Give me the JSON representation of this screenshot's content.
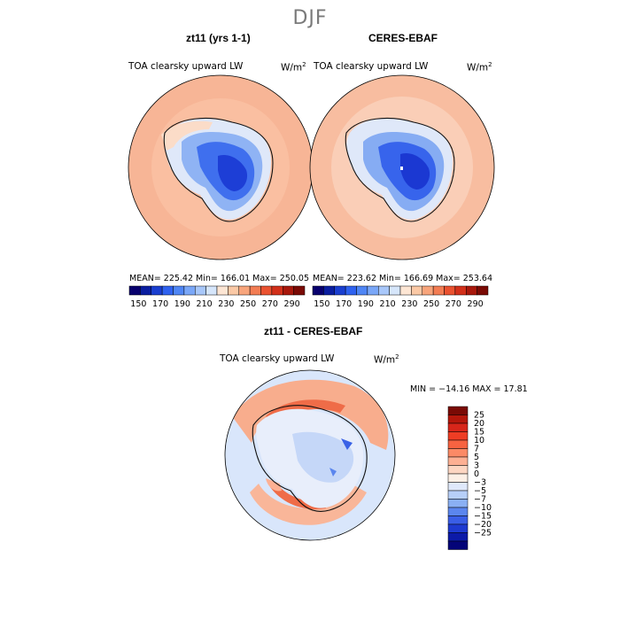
{
  "season": "DJF",
  "panels": [
    {
      "title": "zt11 (yrs 1-1)",
      "variable": "TOA clearsky upward LW",
      "units": "W/m",
      "units_sup": "2",
      "stats": "MEAN= 225.42   Min= 166.01   Max= 250.05"
    },
    {
      "title": "CERES-EBAF",
      "variable": "TOA clearsky upward LW",
      "units": "W/m",
      "units_sup": "2",
      "stats": "MEAN= 223.62   Min= 166.69   Max= 253.64"
    }
  ],
  "colorbar_top": {
    "ticks": [
      "150",
      "170",
      "190",
      "210",
      "230",
      "250",
      "270",
      "290"
    ],
    "colors": [
      "#08006e",
      "#0a1ea0",
      "#1a3fd0",
      "#2f62f0",
      "#4f86f5",
      "#7aa7f8",
      "#a8c7fa",
      "#d6e6fb",
      "#fde6d4",
      "#fbc9a6",
      "#f8a57c",
      "#f37d54",
      "#ea5230",
      "#d2301a",
      "#a8180c",
      "#7a0a05"
    ]
  },
  "diff_panel": {
    "title": "zt11 - CERES-EBAF",
    "variable": "TOA clearsky upward LW",
    "units": "W/m",
    "units_sup": "2",
    "stats": "MIN = −14.16  MAX =  17.81"
  },
  "colorbar_diff": {
    "labels": [
      "25",
      "20",
      "15",
      "10",
      "7",
      "5",
      "3",
      "0",
      "−3",
      "−5",
      "−7",
      "−10",
      "−15",
      "−20",
      "−25"
    ],
    "colors": [
      "#7a0a05",
      "#b5170b",
      "#d8261a",
      "#ee3d24",
      "#f76341",
      "#fb8a66",
      "#fdb093",
      "#fdd6c2",
      "#fdf0e6",
      "#dfe9fb",
      "#b7cff8",
      "#8ab0f4",
      "#5b86ee",
      "#3a5ee6",
      "#1e3ad0",
      "#0c1aa8",
      "#040478"
    ]
  },
  "colors": {
    "ocean_model": "#f7b596",
    "ocean_obs": "#f8bda0"
  }
}
